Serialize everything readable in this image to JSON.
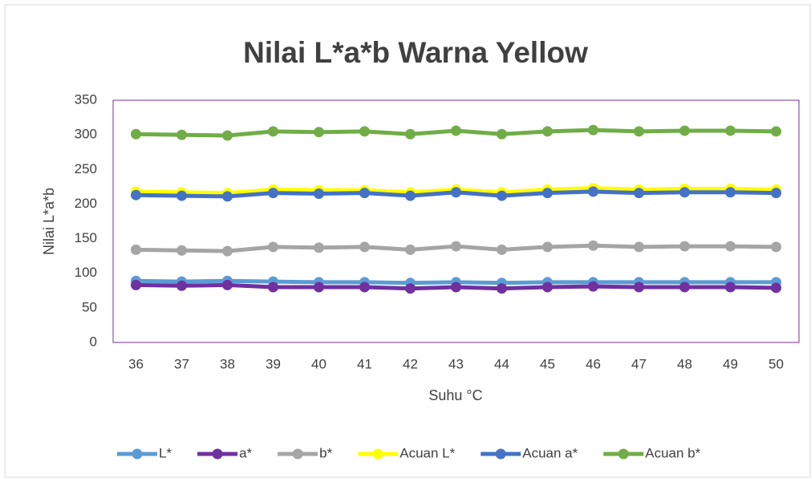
{
  "chart_data": {
    "type": "line",
    "title": "Nilai L*a*b Warna Yellow",
    "x_label": "Suhu °C",
    "y_label": "Nilai L*a*b",
    "categories": [
      "36",
      "37",
      "38",
      "39",
      "40",
      "41",
      "42",
      "43",
      "44",
      "45",
      "46",
      "47",
      "48",
      "49",
      "50"
    ],
    "ylim": [
      0,
      350
    ],
    "yticks": [
      0,
      50,
      100,
      150,
      200,
      250,
      300,
      350
    ],
    "grid": false,
    "legend": "bottom",
    "series": [
      {
        "name": "L*",
        "color": "#5b9bd5",
        "values": [
          89,
          88,
          89,
          88,
          87,
          87,
          86,
          87,
          86,
          87,
          87,
          87,
          87,
          87,
          87
        ]
      },
      {
        "name": "a*",
        "color": "#7030a0",
        "values": [
          83,
          82,
          83,
          80,
          80,
          80,
          78,
          80,
          78,
          80,
          81,
          80,
          80,
          80,
          79
        ]
      },
      {
        "name": "b*",
        "color": "#a5a5a5",
        "values": [
          134,
          133,
          132,
          138,
          137,
          138,
          134,
          139,
          134,
          138,
          140,
          138,
          139,
          139,
          138
        ]
      },
      {
        "name": "Acuan L*",
        "color": "#ffff00",
        "values": [
          218,
          217,
          216,
          221,
          220,
          220,
          217,
          221,
          217,
          221,
          223,
          221,
          222,
          222,
          221
        ]
      },
      {
        "name": "Acuan a*",
        "color": "#4472c4",
        "values": [
          213,
          212,
          211,
          216,
          215,
          216,
          212,
          217,
          212,
          216,
          218,
          216,
          217,
          217,
          216
        ]
      },
      {
        "name": "Acuan b*",
        "color": "#70ad47",
        "values": [
          301,
          300,
          299,
          305,
          304,
          305,
          301,
          306,
          301,
          305,
          307,
          305,
          306,
          306,
          305
        ]
      }
    ]
  }
}
